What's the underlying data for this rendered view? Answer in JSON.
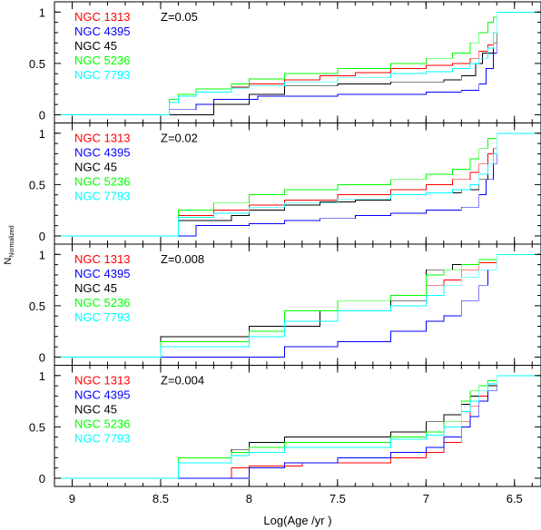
{
  "chart_data": {
    "type": "line",
    "xlabel": "Log(Age /yr )",
    "ylabel_main": "N",
    "ylabel_sub": "Normalized",
    "x_ticks": [
      "9",
      "8.5",
      "8",
      "7.5",
      "7",
      "6.5"
    ],
    "x_tick_values": [
      9,
      8.5,
      8,
      7.5,
      7,
      6.5
    ],
    "xlim": [
      9.1,
      6.35
    ],
    "ylim": [
      -0.08,
      1.1
    ],
    "y_ticks": [
      "0",
      "0.5",
      "1"
    ],
    "y_tick_values": [
      0,
      0.5,
      1
    ],
    "legend_names": [
      "NGC 1313",
      "NGC 4395",
      "NGC 45",
      "NGC 5236",
      "NGC 7793"
    ],
    "colors": [
      "#ff0000",
      "#0000ff",
      "#000000",
      "#00ff00",
      "#00ffff"
    ],
    "panels": [
      {
        "metallicity": "Z=0.05",
        "series": [
          {
            "name": "NGC 1313",
            "x": [
              8.72,
              8.45,
              8.4,
              8.3,
              8.1,
              8.0,
              7.8,
              7.6,
              7.4,
              7.2,
              7.0,
              6.85,
              6.75,
              6.7,
              6.65,
              6.62,
              6.6
            ],
            "y": [
              0.0,
              0.12,
              0.18,
              0.22,
              0.27,
              0.3,
              0.34,
              0.38,
              0.41,
              0.45,
              0.48,
              0.5,
              0.55,
              0.62,
              0.68,
              0.8,
              1.0
            ]
          },
          {
            "name": "NGC 4395",
            "x": [
              8.55,
              8.45,
              8.3,
              8.2,
              7.95,
              7.5,
              7.0,
              6.8,
              6.7,
              6.66,
              6.62,
              6.6
            ],
            "y": [
              0.0,
              0.05,
              0.1,
              0.15,
              0.18,
              0.2,
              0.22,
              0.24,
              0.3,
              0.45,
              0.6,
              1.0
            ]
          },
          {
            "name": "NGC 45",
            "x": [
              8.5,
              8.2,
              8.0,
              7.8,
              7.5,
              7.2,
              6.9,
              6.8,
              6.72,
              6.68,
              6.62,
              6.6
            ],
            "y": [
              0.0,
              0.1,
              0.2,
              0.28,
              0.3,
              0.32,
              0.34,
              0.38,
              0.5,
              0.6,
              0.7,
              1.0
            ]
          },
          {
            "name": "NGC 5236",
            "x": [
              8.72,
              8.45,
              8.4,
              8.3,
              8.1,
              8.0,
              7.8,
              7.5,
              7.2,
              7.0,
              6.85,
              6.75,
              6.7,
              6.65,
              6.62,
              6.6
            ],
            "y": [
              0.0,
              0.15,
              0.2,
              0.25,
              0.3,
              0.35,
              0.4,
              0.45,
              0.5,
              0.55,
              0.6,
              0.7,
              0.8,
              0.9,
              0.95,
              1.0
            ]
          },
          {
            "name": "NGC 7793",
            "x": [
              8.72,
              8.45,
              8.4,
              8.3,
              8.1,
              8.0,
              7.8,
              7.5,
              7.2,
              7.0,
              6.85,
              6.75,
              6.7,
              6.65,
              6.62,
              6.6
            ],
            "y": [
              0.0,
              0.12,
              0.18,
              0.22,
              0.26,
              0.28,
              0.32,
              0.36,
              0.4,
              0.42,
              0.45,
              0.5,
              0.55,
              0.65,
              0.8,
              1.0
            ]
          }
        ]
      },
      {
        "metallicity": "Z=0.02",
        "series": [
          {
            "name": "NGC 1313",
            "x": [
              8.5,
              8.4,
              8.2,
              8.0,
              7.8,
              7.5,
              7.2,
              7.0,
              6.85,
              6.75,
              6.7,
              6.65,
              6.62,
              6.6
            ],
            "y": [
              0.0,
              0.2,
              0.25,
              0.3,
              0.35,
              0.4,
              0.45,
              0.5,
              0.55,
              0.62,
              0.7,
              0.8,
              0.85,
              1.0
            ]
          },
          {
            "name": "NGC 4395",
            "x": [
              8.45,
              8.3,
              8.0,
              7.8,
              7.6,
              7.4,
              7.2,
              7.0,
              6.8,
              6.7,
              6.66,
              6.62,
              6.6
            ],
            "y": [
              0.0,
              0.1,
              0.12,
              0.15,
              0.17,
              0.2,
              0.22,
              0.25,
              0.28,
              0.4,
              0.55,
              0.7,
              1.0
            ]
          },
          {
            "name": "NGC 45",
            "x": [
              8.5,
              8.4,
              8.1,
              8.0,
              7.8,
              7.6,
              7.4,
              7.2,
              7.0,
              6.8,
              6.7,
              6.65,
              6.62,
              6.6
            ],
            "y": [
              0.0,
              0.15,
              0.2,
              0.25,
              0.3,
              0.33,
              0.35,
              0.4,
              0.42,
              0.45,
              0.55,
              0.7,
              0.8,
              1.0
            ]
          },
          {
            "name": "NGC 5236",
            "x": [
              8.5,
              8.4,
              8.2,
              8.0,
              7.8,
              7.5,
              7.2,
              7.0,
              6.85,
              6.75,
              6.7,
              6.65,
              6.6
            ],
            "y": [
              0.0,
              0.25,
              0.32,
              0.4,
              0.45,
              0.5,
              0.55,
              0.6,
              0.65,
              0.75,
              0.85,
              0.95,
              1.0
            ]
          },
          {
            "name": "NGC 7793",
            "x": [
              8.5,
              8.4,
              8.2,
              8.0,
              7.8,
              7.5,
              7.2,
              7.0,
              6.85,
              6.75,
              6.7,
              6.65,
              6.62,
              6.6
            ],
            "y": [
              0.0,
              0.18,
              0.22,
              0.28,
              0.32,
              0.36,
              0.4,
              0.42,
              0.45,
              0.5,
              0.6,
              0.7,
              0.8,
              1.0
            ]
          }
        ]
      },
      {
        "metallicity": "Z=0.008",
        "series": [
          {
            "name": "NGC 1313",
            "x": [
              8.7,
              8.5,
              8.0,
              7.8,
              7.5,
              7.2,
              7.0,
              6.9,
              6.8,
              6.7,
              6.6
            ],
            "y": [
              0.0,
              0.15,
              0.25,
              0.35,
              0.45,
              0.55,
              0.7,
              0.75,
              0.85,
              0.92,
              1.0
            ]
          },
          {
            "name": "NGC 4395",
            "x": [
              8.0,
              7.8,
              7.5,
              7.2,
              7.0,
              6.9,
              6.8,
              6.7,
              6.65,
              6.6
            ],
            "y": [
              0.0,
              0.1,
              0.15,
              0.25,
              0.35,
              0.4,
              0.55,
              0.7,
              0.85,
              1.0
            ]
          },
          {
            "name": "NGC 45",
            "x": [
              8.7,
              8.5,
              8.0,
              7.6,
              7.2,
              7.0,
              6.85,
              6.7,
              6.6
            ],
            "y": [
              0.0,
              0.2,
              0.3,
              0.45,
              0.55,
              0.85,
              0.9,
              0.95,
              1.0
            ]
          },
          {
            "name": "NGC 5236",
            "x": [
              8.7,
              8.5,
              8.0,
              7.8,
              7.5,
              7.2,
              7.0,
              6.9,
              6.8,
              6.7,
              6.6
            ],
            "y": [
              0.0,
              0.15,
              0.25,
              0.45,
              0.55,
              0.6,
              0.8,
              0.85,
              0.9,
              0.95,
              1.0
            ]
          },
          {
            "name": "NGC 7793",
            "x": [
              8.7,
              8.5,
              8.0,
              7.8,
              7.5,
              7.2,
              7.0,
              6.9,
              6.8,
              6.7,
              6.6
            ],
            "y": [
              0.0,
              0.1,
              0.2,
              0.35,
              0.45,
              0.5,
              0.6,
              0.7,
              0.78,
              0.85,
              1.0
            ]
          }
        ]
      },
      {
        "metallicity": "Z=0.004",
        "series": [
          {
            "name": "NGC 1313",
            "x": [
              8.4,
              8.1,
              8.0,
              7.7,
              7.2,
              7.0,
              6.9,
              6.8,
              6.75,
              6.7,
              6.65,
              6.6
            ],
            "y": [
              0.0,
              0.1,
              0.12,
              0.15,
              0.2,
              0.25,
              0.35,
              0.55,
              0.7,
              0.8,
              0.9,
              1.0
            ]
          },
          {
            "name": "NGC 4395",
            "x": [
              8.1,
              8.0,
              7.8,
              7.5,
              7.2,
              7.0,
              6.9,
              6.8,
              6.75,
              6.7,
              6.65,
              6.6
            ],
            "y": [
              0.0,
              0.1,
              0.15,
              0.2,
              0.25,
              0.3,
              0.4,
              0.5,
              0.6,
              0.75,
              0.85,
              1.0
            ]
          },
          {
            "name": "NGC 45",
            "x": [
              8.7,
              8.4,
              8.1,
              8.0,
              7.8,
              7.2,
              7.0,
              6.9,
              6.8,
              6.75,
              6.7,
              6.65,
              6.6
            ],
            "y": [
              0.0,
              0.2,
              0.28,
              0.35,
              0.4,
              0.45,
              0.55,
              0.62,
              0.72,
              0.8,
              0.85,
              0.9,
              1.0
            ]
          },
          {
            "name": "NGC 5236",
            "x": [
              8.7,
              8.4,
              8.1,
              8.0,
              7.8,
              7.2,
              7.0,
              6.9,
              6.8,
              6.75,
              6.7,
              6.65,
              6.6
            ],
            "y": [
              0.0,
              0.2,
              0.25,
              0.3,
              0.35,
              0.4,
              0.45,
              0.55,
              0.75,
              0.85,
              0.9,
              0.95,
              1.0
            ]
          },
          {
            "name": "NGC 7793",
            "x": [
              8.7,
              8.4,
              8.1,
              8.0,
              7.8,
              7.2,
              7.0,
              6.9,
              6.8,
              6.75,
              6.7,
              6.65,
              6.6
            ],
            "y": [
              0.0,
              0.15,
              0.22,
              0.25,
              0.3,
              0.38,
              0.42,
              0.5,
              0.65,
              0.75,
              0.85,
              0.92,
              1.0
            ]
          }
        ]
      }
    ]
  }
}
